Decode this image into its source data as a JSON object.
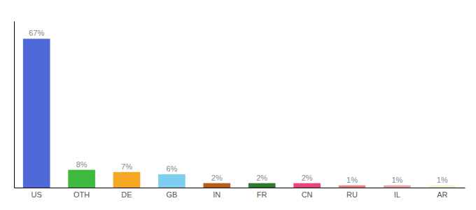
{
  "chart_data": {
    "type": "bar",
    "categories": [
      "US",
      "OTH",
      "DE",
      "GB",
      "IN",
      "FR",
      "CN",
      "RU",
      "IL",
      "AR"
    ],
    "values": [
      67,
      8,
      7,
      6,
      2,
      2,
      2,
      1,
      1,
      1
    ],
    "value_labels": [
      "67%",
      "8%",
      "7%",
      "6%",
      "2%",
      "2%",
      "2%",
      "1%",
      "1%",
      "1%"
    ],
    "colors": [
      "#4f69d9",
      "#3dba3d",
      "#f5a623",
      "#7ecef0",
      "#b85c1a",
      "#2d7a2d",
      "#e8457a",
      "#f08080",
      "#f0a0a0",
      "#f5f0d0"
    ],
    "ylim": [
      0,
      75
    ],
    "data_labels": true,
    "tick_labels": "x",
    "grid": false
  }
}
